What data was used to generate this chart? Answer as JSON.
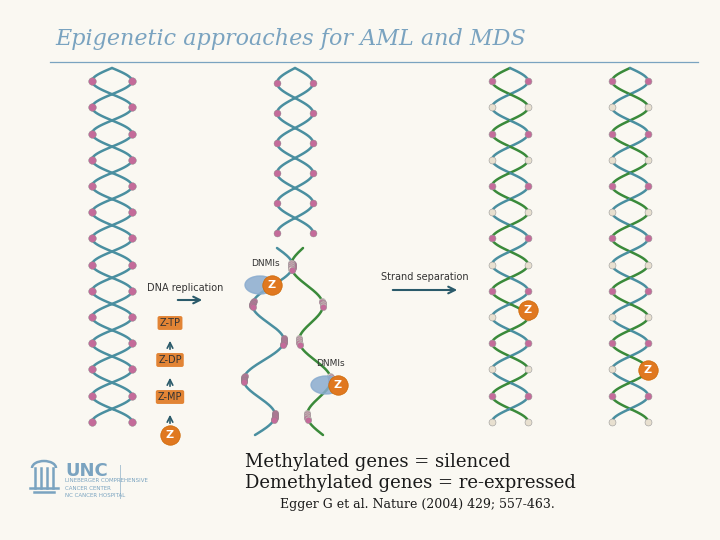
{
  "title": "Epigenetic approaches for AML and MDS",
  "title_color": "#7aa3c0",
  "title_fontsize": 16,
  "background_color": "#faf8f2",
  "line_color": "#7aa3c0",
  "body_text_line1": "Methylated genes = silenced",
  "body_text_line2": "Demethylated genes = re-expressed",
  "body_text_color": "#1a1a1a",
  "body_text_fontsize": 13,
  "citation": "Egger G et al. Nature (2004) 429; 557-463.",
  "citation_color": "#1a1a1a",
  "citation_fontsize": 9,
  "unc_text_large": "UNC",
  "unc_text_small1": "LINEBERGER COMPREHENSIVE",
  "unc_text_small2": "CANCER CENTER",
  "unc_text_small3": "NC CANCER HOSPITAL",
  "unc_color": "#7aa3c0",
  "teal_color": "#4a8fa0",
  "green_color": "#3a8a3a",
  "pink_dot_color": "#c46b9a",
  "white_dot_color": "#e8e0d0",
  "orange_badge_color": "#e07820",
  "dnmt_blob_color": "#8aaccf",
  "label_color": "#333333",
  "arrow_color": "#2a5a6a"
}
